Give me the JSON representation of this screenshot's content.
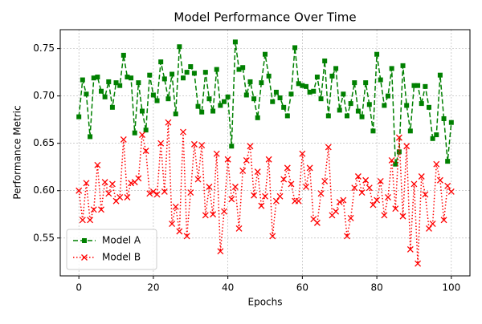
{
  "chart_data": {
    "type": "line",
    "title": "Model Performance Over Time",
    "x_label": "Epochs",
    "y_label": "Performance Metric",
    "x": [
      0,
      1,
      2,
      3,
      4,
      5,
      6,
      7,
      8,
      9,
      10,
      11,
      12,
      13,
      14,
      15,
      16,
      17,
      18,
      19,
      20,
      21,
      22,
      23,
      24,
      25,
      26,
      27,
      28,
      29,
      30,
      31,
      32,
      33,
      34,
      35,
      36,
      37,
      38,
      39,
      40,
      41,
      42,
      43,
      44,
      45,
      46,
      47,
      48,
      49,
      50,
      51,
      52,
      53,
      54,
      55,
      56,
      57,
      58,
      59,
      60,
      61,
      62,
      63,
      64,
      65,
      66,
      67,
      68,
      69,
      70,
      71,
      72,
      73,
      74,
      75,
      76,
      77,
      78,
      79,
      80,
      81,
      82,
      83,
      84,
      85,
      86,
      87,
      88,
      89,
      90,
      91,
      92,
      93,
      94,
      95,
      96,
      97,
      98,
      99,
      100
    ],
    "series": [
      {
        "name": "Model A",
        "color": "#008000",
        "line_style": "dashed",
        "marker": "square",
        "values": [
          0.678,
          0.717,
          0.702,
          0.657,
          0.719,
          0.72,
          0.705,
          0.699,
          0.715,
          0.688,
          0.714,
          0.711,
          0.743,
          0.72,
          0.719,
          0.661,
          0.714,
          0.684,
          0.664,
          0.722,
          0.701,
          0.695,
          0.736,
          0.718,
          0.697,
          0.723,
          0.681,
          0.752,
          0.719,
          0.725,
          0.731,
          0.724,
          0.689,
          0.683,
          0.725,
          0.697,
          0.684,
          0.728,
          0.69,
          0.694,
          0.699,
          0.647,
          0.757,
          0.728,
          0.73,
          0.701,
          0.715,
          0.697,
          0.677,
          0.714,
          0.744,
          0.721,
          0.694,
          0.704,
          0.698,
          0.688,
          0.679,
          0.702,
          0.751,
          0.713,
          0.711,
          0.71,
          0.704,
          0.705,
          0.72,
          0.697,
          0.737,
          0.679,
          0.721,
          0.729,
          0.685,
          0.702,
          0.679,
          0.692,
          0.714,
          0.684,
          0.678,
          0.714,
          0.691,
          0.663,
          0.744,
          0.717,
          0.69,
          0.7,
          0.729,
          0.628,
          0.641,
          0.732,
          0.69,
          0.663,
          0.711,
          0.711,
          0.692,
          0.71,
          0.688,
          0.655,
          0.659,
          0.722,
          0.676,
          0.631,
          0.672
        ]
      },
      {
        "name": "Model B",
        "color": "#ff0000",
        "line_style": "dotted",
        "marker": "x",
        "values": [
          0.6,
          0.569,
          0.608,
          0.569,
          0.58,
          0.627,
          0.58,
          0.609,
          0.597,
          0.607,
          0.589,
          0.593,
          0.654,
          0.593,
          0.608,
          0.609,
          0.613,
          0.659,
          0.642,
          0.597,
          0.599,
          0.596,
          0.65,
          0.599,
          0.672,
          0.565,
          0.583,
          0.557,
          0.662,
          0.552,
          0.598,
          0.649,
          0.612,
          0.648,
          0.574,
          0.604,
          0.575,
          0.639,
          0.536,
          0.578,
          0.633,
          0.591,
          0.604,
          0.56,
          0.621,
          0.632,
          0.647,
          0.595,
          0.62,
          0.584,
          0.594,
          0.633,
          0.552,
          0.589,
          0.594,
          0.612,
          0.624,
          0.607,
          0.589,
          0.589,
          0.639,
          0.604,
          0.624,
          0.57,
          0.566,
          0.597,
          0.61,
          0.646,
          0.574,
          0.578,
          0.588,
          0.59,
          0.552,
          0.571,
          0.603,
          0.615,
          0.598,
          0.611,
          0.603,
          0.585,
          0.59,
          0.61,
          0.574,
          0.593,
          0.632,
          0.581,
          0.656,
          0.573,
          0.647,
          0.538,
          0.607,
          0.523,
          0.615,
          0.596,
          0.56,
          0.565,
          0.628,
          0.611,
          0.569,
          0.605,
          0.599
        ]
      }
    ],
    "xlim": [
      -5,
      105
    ],
    "ylim": [
      0.51,
      0.77
    ],
    "xticks": [
      0,
      20,
      40,
      60,
      80,
      100
    ],
    "yticks": [
      0.55,
      {
        "value": 0.6,
        "label": "0.60"
      },
      0.65,
      {
        "value": 0.7,
        "label": "0.70"
      },
      0.75
    ],
    "grid": true,
    "legend": "lower left"
  }
}
